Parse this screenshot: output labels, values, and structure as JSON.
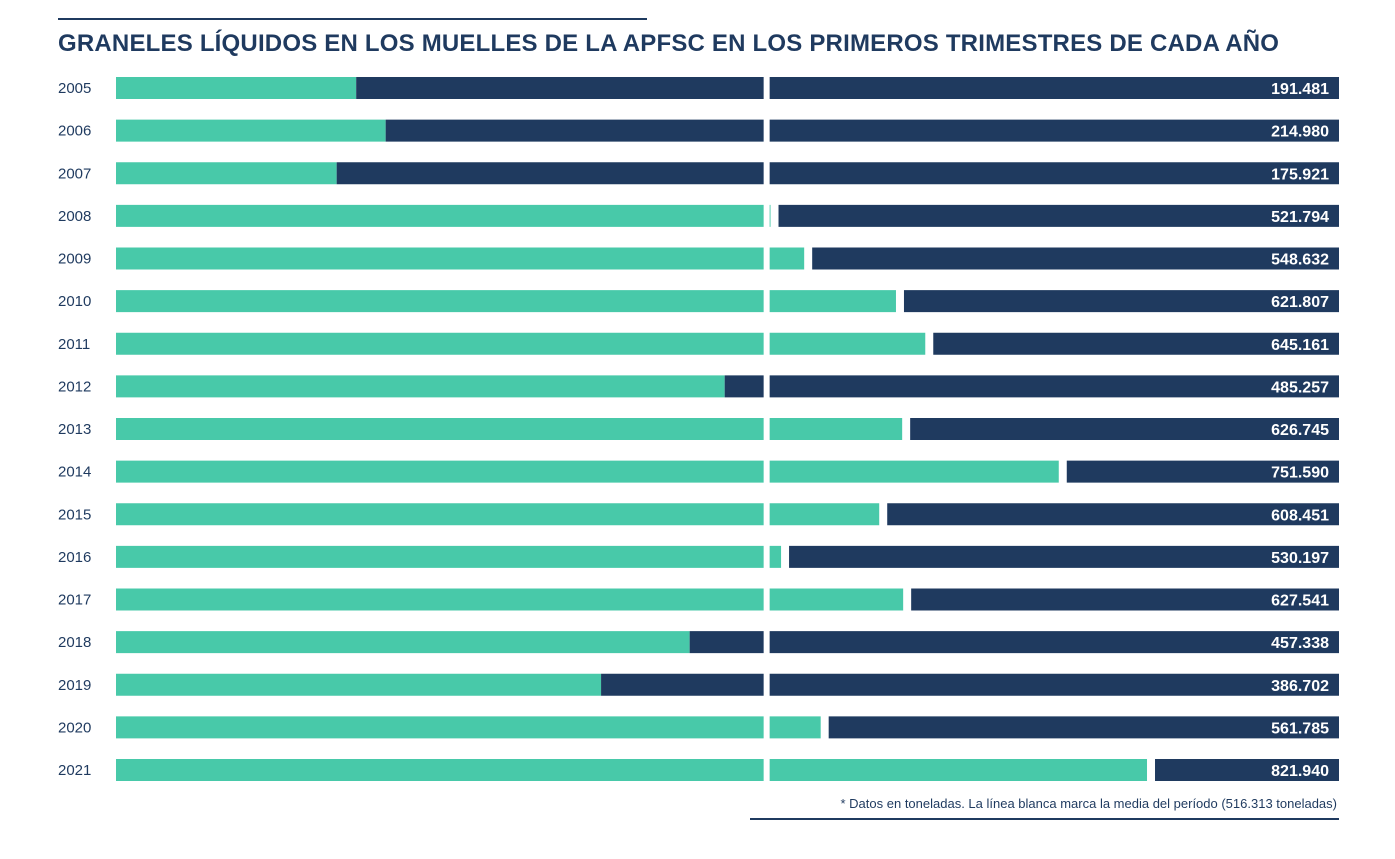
{
  "colors": {
    "accent": "#48c9a9",
    "navy": "#1f3a5f",
    "background": "#ffffff"
  },
  "chart_data": {
    "type": "bar",
    "orientation": "horizontal",
    "title": "GRANELES LÍQUIDOS EN LOS MUELLES DE LA APFSC EN LOS PRIMEROS TRIMESTRES DE CADA AÑO",
    "note": "* Datos en toneladas. La línea blanca marca la media del período (516.313 toneladas)",
    "mean": 516313,
    "xlim": [
      0,
      975000
    ],
    "categories": [
      "2005",
      "2006",
      "2007",
      "2008",
      "2009",
      "2010",
      "2011",
      "2012",
      "2013",
      "2014",
      "2015",
      "2016",
      "2017",
      "2018",
      "2019",
      "2020",
      "2021"
    ],
    "values": [
      191481,
      214980,
      175921,
      521794,
      548632,
      621807,
      645161,
      485257,
      626745,
      751590,
      608451,
      530197,
      627541,
      457338,
      386702,
      561785,
      821940
    ],
    "value_labels": [
      "191.481",
      "214.980",
      "175.921",
      "521.794",
      "548.632",
      "621.807",
      "645.161",
      "485.257",
      "626.745",
      "751.590",
      "608.451",
      "530.197",
      "627.541",
      "457.338",
      "386.702",
      "561.785",
      "821.940"
    ]
  }
}
